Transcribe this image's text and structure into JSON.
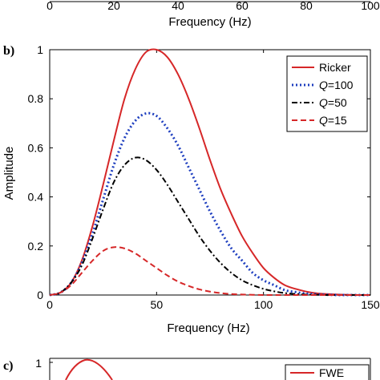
{
  "top_panel": {
    "xlabel": "Frequency (Hz)",
    "x_ticks": [
      "0",
      "20",
      "40",
      "60",
      "80",
      "100"
    ],
    "x_ticks_visible_note": ""
  },
  "middle_panel": {
    "panel_label": "b)"
  },
  "bottom_panel": {
    "panel_label": "c)",
    "y_tick": "1",
    "legend_entry": "FWE",
    "line_color": "#d62728"
  },
  "chart_data": {
    "type": "line",
    "xlabel": "Frequency (Hz)",
    "ylabel": "Amplitude",
    "xlim": [
      0,
      150
    ],
    "ylim": [
      0,
      1
    ],
    "x_ticks": [
      0,
      50,
      100,
      150
    ],
    "y_ticks": [
      0,
      0.2,
      0.4,
      0.6,
      0.8,
      1
    ],
    "grid": false,
    "legend_position": "top-right",
    "x": [
      0,
      5,
      10,
      15,
      20,
      25,
      30,
      35,
      40,
      45,
      50,
      55,
      60,
      65,
      70,
      75,
      80,
      85,
      90,
      95,
      100,
      105,
      110,
      115,
      120,
      125,
      130,
      135,
      140,
      145,
      150
    ],
    "series": [
      {
        "name": "Ricker",
        "color": "#d62728",
        "dash": "solid",
        "values": [
          0,
          0.01,
          0.05,
          0.14,
          0.28,
          0.45,
          0.63,
          0.8,
          0.92,
          0.99,
          1.0,
          0.97,
          0.9,
          0.8,
          0.68,
          0.55,
          0.43,
          0.33,
          0.24,
          0.17,
          0.11,
          0.07,
          0.04,
          0.025,
          0.014,
          0.007,
          0.004,
          0.002,
          0.001,
          0,
          0
        ]
      },
      {
        "name": "Q=100",
        "color": "#1f3fbf",
        "dash": "dot",
        "values": [
          0,
          0.01,
          0.05,
          0.13,
          0.25,
          0.39,
          0.53,
          0.64,
          0.71,
          0.74,
          0.73,
          0.68,
          0.61,
          0.52,
          0.43,
          0.34,
          0.26,
          0.19,
          0.14,
          0.09,
          0.06,
          0.04,
          0.02,
          0.012,
          0.006,
          0.003,
          0.001,
          0,
          0,
          0,
          0
        ]
      },
      {
        "name": "Q=50",
        "color": "#000000",
        "dash": "dashdot",
        "values": [
          0,
          0.01,
          0.05,
          0.12,
          0.23,
          0.35,
          0.46,
          0.53,
          0.56,
          0.55,
          0.51,
          0.45,
          0.38,
          0.31,
          0.24,
          0.18,
          0.13,
          0.09,
          0.06,
          0.04,
          0.025,
          0.015,
          0.008,
          0.004,
          0.002,
          0.001,
          0,
          0,
          0,
          0,
          0
        ]
      },
      {
        "name": "Q=15",
        "color": "#d62728",
        "dash": "dash",
        "values": [
          0,
          0.01,
          0.04,
          0.09,
          0.14,
          0.18,
          0.195,
          0.19,
          0.17,
          0.14,
          0.11,
          0.08,
          0.055,
          0.037,
          0.023,
          0.014,
          0.008,
          0.004,
          0.002,
          0.001,
          0,
          0,
          0,
          0,
          0,
          0,
          0,
          0,
          0,
          0,
          0
        ]
      }
    ]
  }
}
